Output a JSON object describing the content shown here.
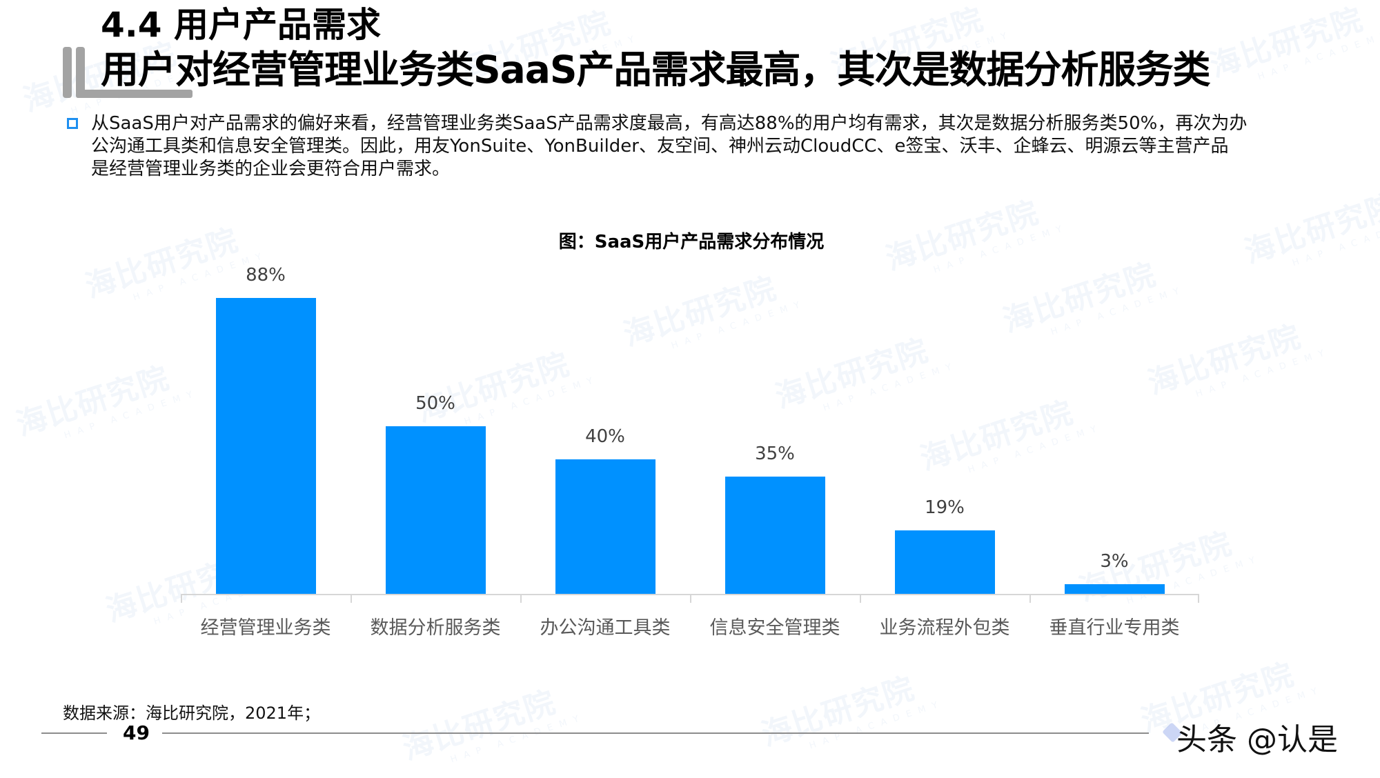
{
  "header": {
    "section_title": "4.4 用户产品需求",
    "headline": "用户对经营管理业务类SaaS产品需求最高，其次是数据分析服务类"
  },
  "body": {
    "bullet_icon": "hollow-square-bullet",
    "lines": [
      "从SaaS用户对产品需求的偏好来看，经营管理业务类SaaS产品需求度最高，有高达88%的用户均有需求，其次是数据分析服务类50%，再次为办",
      "公沟通工具类和信息安全管理类。因此，用友YonSuite、YonBuilder、友空间、神州云动CloudCC、e签宝、沃丰、企蜂云、明源云等主营产品",
      "是经营管理业务类的企业会更符合用户需求。"
    ]
  },
  "chart_data": {
    "type": "bar",
    "title": "图：SaaS用户产品需求分布情况",
    "categories": [
      "经营管理业务类",
      "数据分析服务类",
      "办公沟通工具类",
      "信息安全管理类",
      "业务流程外包类",
      "垂直行业专用类"
    ],
    "values": [
      88,
      50,
      40,
      35,
      19,
      3
    ],
    "value_labels": [
      "88%",
      "50%",
      "40%",
      "35%",
      "19%",
      "3%"
    ],
    "unit": "%",
    "xlabel": "",
    "ylabel": "",
    "ylim": [
      0,
      100
    ],
    "grid": false,
    "legend": null,
    "bar_color": "#0091ff"
  },
  "footer": {
    "source": "数据来源：海比研究院，2021年；",
    "page_number": "49",
    "credit": "头条 @认是"
  },
  "watermark": {
    "text": "海比研究院",
    "subtext": "HAP ACADEMY"
  },
  "colors": {
    "accent": "#1e8ff0",
    "bar": "#0091ff",
    "decor_gray": "#a3a3a3"
  }
}
